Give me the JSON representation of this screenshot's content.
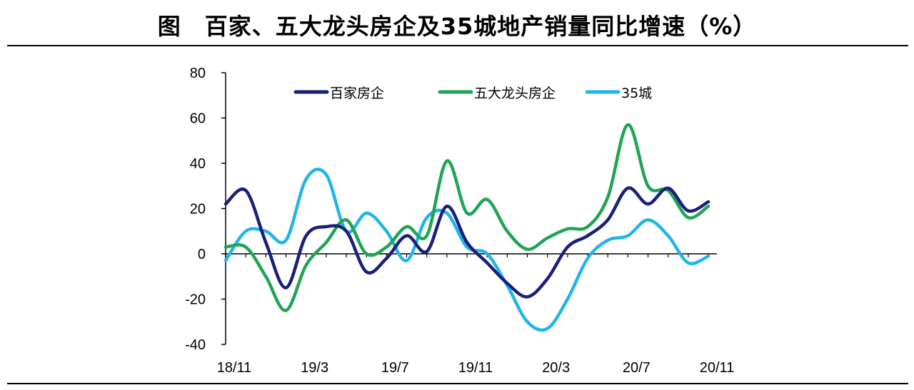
{
  "title": "图　百家、五大龙头房企及35城地产销量同比增速（%）",
  "chart_data": {
    "type": "line",
    "title": "图　百家、五大龙头房企及35城地产销量同比增速（%）",
    "xlabel": "",
    "ylabel": "",
    "ylim": [
      -40,
      80
    ],
    "yticks": [
      -40,
      -20,
      0,
      20,
      40,
      60,
      80
    ],
    "x": [
      "18/11",
      "18/12",
      "19/1",
      "19/2",
      "19/3",
      "19/4",
      "19/5",
      "19/6",
      "19/7",
      "19/8",
      "19/9",
      "19/10",
      "19/11",
      "19/12",
      "20/1",
      "20/2",
      "20/3",
      "20/4",
      "20/5",
      "20/6",
      "20/7",
      "20/8",
      "20/9",
      "20/10",
      "20/11"
    ],
    "xticklabels": [
      "18/11",
      "19/3",
      "19/7",
      "19/11",
      "20/3",
      "20/7",
      "20/11"
    ],
    "grid": false,
    "legend": "top",
    "series": [
      {
        "name": "百家房企",
        "color": "#1a1f7a",
        "values": [
          22,
          28,
          5,
          -15,
          8,
          12,
          10,
          -8,
          -2,
          8,
          1,
          21,
          5,
          -4,
          -13,
          -19,
          -11,
          3,
          8,
          15,
          29,
          22,
          29,
          19,
          23
        ]
      },
      {
        "name": "五大龙头房企",
        "color": "#21a455",
        "values": [
          3,
          3,
          -10,
          -25,
          -5,
          5,
          15,
          0,
          3,
          12,
          8,
          41,
          18,
          24,
          10,
          2,
          7,
          11,
          12,
          25,
          57,
          30,
          28,
          16,
          21
        ]
      },
      {
        "name": "35城",
        "color": "#21b5e8",
        "values": [
          -3,
          10,
          10,
          6,
          33,
          35,
          10,
          18,
          10,
          -3,
          16,
          18,
          3,
          0,
          -14,
          -30,
          -33,
          -20,
          -2,
          6,
          8,
          15,
          8,
          -4,
          -1
        ]
      }
    ]
  }
}
